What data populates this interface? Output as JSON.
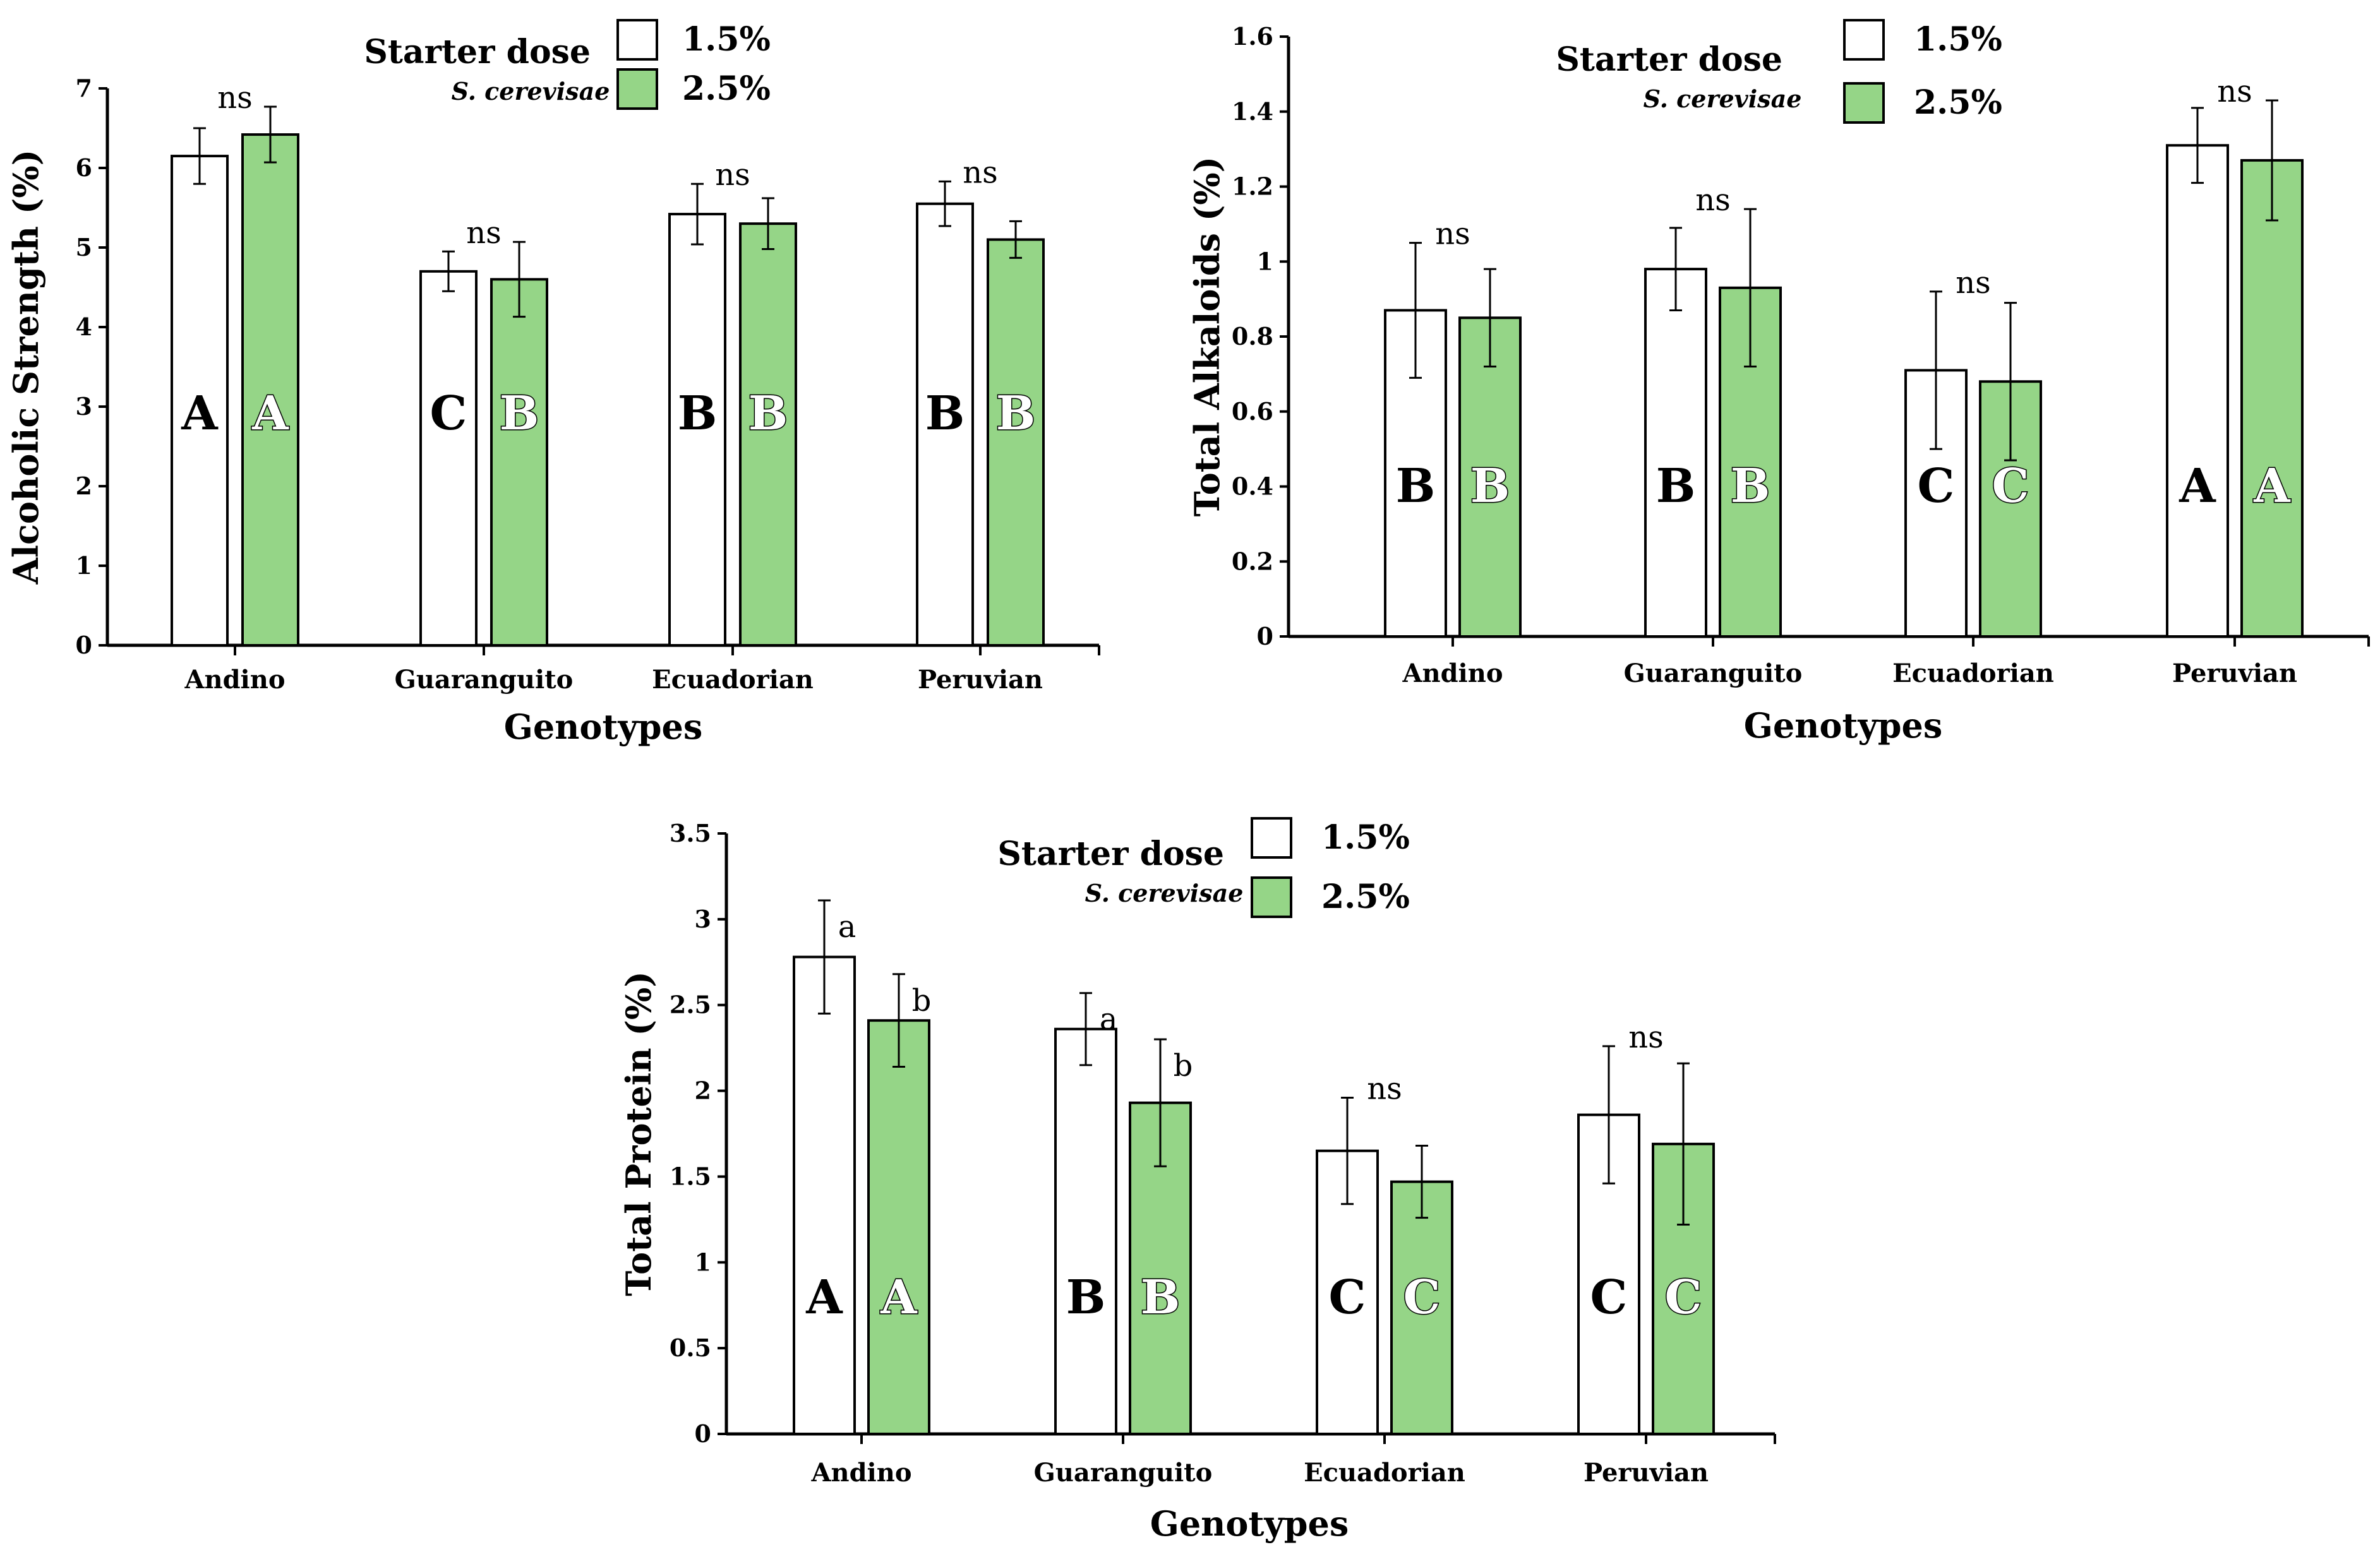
{
  "colors": {
    "dose_1_5": "#ffffff",
    "dose_2_5": "#95d587",
    "stroke": "#000000"
  },
  "chart_data": [
    {
      "type": "bar",
      "categories": [
        "Andino",
        "Guaranguito",
        "Ecuadorian",
        "Peruvian"
      ],
      "xlabel": "Genotypes",
      "ylabel": "Alcoholic Strength (%)",
      "ylim": [
        0,
        7
      ],
      "yticks": [
        "0",
        "1",
        "2",
        "3",
        "4",
        "5",
        "6",
        "7"
      ],
      "legend": {
        "title": "Starter dose",
        "subtitle": "S. cerevisae",
        "position": "top-center"
      },
      "series": [
        {
          "name": "1.5%",
          "values": [
            6.15,
            4.7,
            5.42,
            5.55
          ],
          "errors": [
            0.35,
            0.25,
            0.38,
            0.28
          ],
          "groups": [
            "A",
            "C",
            "B",
            "B"
          ]
        },
        {
          "name": "2.5%",
          "values": [
            6.42,
            4.6,
            5.3,
            5.1
          ],
          "errors": [
            0.35,
            0.47,
            0.32,
            0.23
          ],
          "groups": [
            "A",
            "B",
            "B",
            "B"
          ]
        }
      ],
      "significance": [
        "ns",
        "ns",
        "ns",
        "ns"
      ]
    },
    {
      "type": "bar",
      "categories": [
        "Andino",
        "Guaranguito",
        "Ecuadorian",
        "Peruvian"
      ],
      "xlabel": "Genotypes",
      "ylabel": "Total Alkaloids (%)",
      "ylim": [
        0,
        1.6
      ],
      "yticks": [
        "0",
        "0.2",
        "0.4",
        "0.6",
        "0.8",
        "1",
        "1.2",
        "1.4",
        "1.6"
      ],
      "legend": {
        "title": "Starter dose",
        "subtitle": "S. cerevisae",
        "position": "top-center"
      },
      "series": [
        {
          "name": "1.5%",
          "values": [
            0.87,
            0.98,
            0.71,
            1.31
          ],
          "errors": [
            0.18,
            0.11,
            0.21,
            0.1
          ],
          "groups": [
            "B",
            "B",
            "C",
            "A"
          ]
        },
        {
          "name": "2.5%",
          "values": [
            0.85,
            0.93,
            0.68,
            1.27
          ],
          "errors": [
            0.13,
            0.21,
            0.21,
            0.16
          ],
          "groups": [
            "B",
            "B",
            "C",
            "A"
          ]
        }
      ],
      "significance": [
        "ns",
        "ns",
        "ns",
        "ns"
      ]
    },
    {
      "type": "bar",
      "categories": [
        "Andino",
        "Guaranguito",
        "Ecuadorian",
        "Peruvian"
      ],
      "xlabel": "Genotypes",
      "ylabel": "Total Protein (%)",
      "ylim": [
        0,
        3.5
      ],
      "yticks": [
        "0",
        "0.5",
        "1",
        "1.5",
        "2",
        "2.5",
        "3",
        "3.5"
      ],
      "legend": {
        "title": "Starter dose",
        "subtitle": "S. cerevisae",
        "position": "top-center"
      },
      "series": [
        {
          "name": "1.5%",
          "values": [
            2.78,
            2.36,
            1.65,
            1.86
          ],
          "errors": [
            0.33,
            0.21,
            0.31,
            0.4
          ],
          "groups": [
            "A",
            "B",
            "C",
            "C"
          ]
        },
        {
          "name": "2.5%",
          "values": [
            2.41,
            1.93,
            1.47,
            1.69
          ],
          "errors": [
            0.27,
            0.37,
            0.21,
            0.47
          ],
          "groups": [
            "A",
            "B",
            "C",
            "C"
          ]
        }
      ],
      "pair_labels": [
        [
          "a",
          "b"
        ],
        [
          "a",
          "b"
        ]
      ],
      "significance": [
        "",
        "",
        "ns",
        "ns"
      ]
    }
  ]
}
